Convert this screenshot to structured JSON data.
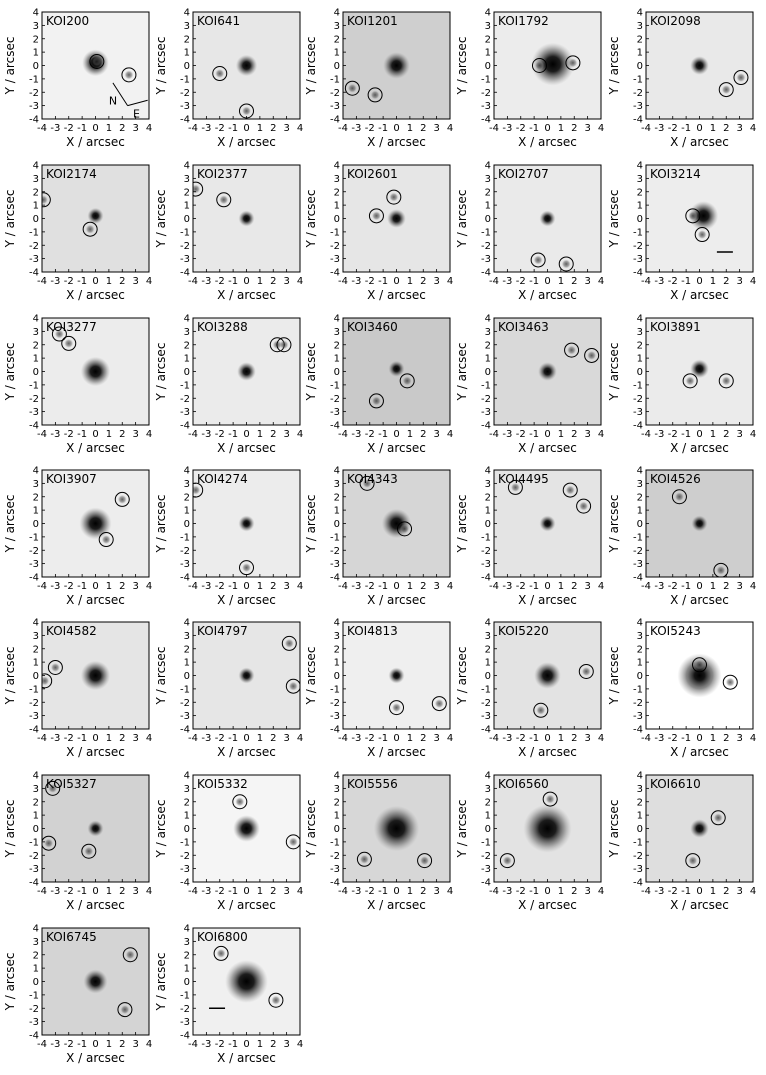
{
  "figure": {
    "xlabel": "X / arcsec",
    "ylabel": "Y / arcsec",
    "ticks": [
      "-4",
      "-3",
      "-2",
      "-1",
      "0",
      "1",
      "2",
      "3",
      "4"
    ],
    "compass": {
      "north": "N",
      "east": "E"
    }
  },
  "chart_data": {
    "type": "image-grid",
    "xlabel": "X / arcsec",
    "ylabel": "Y / arcsec",
    "xlim": [
      -4,
      4
    ],
    "ylim": [
      -4,
      4
    ],
    "panels": [
      {
        "label": "KOI200",
        "bg": "#f2f2f2",
        "primary": {
          "x": 0,
          "y": 0.2,
          "r": 1.0
        },
        "circles": [
          [
            0.1,
            0.3
          ],
          [
            2.5,
            -0.7
          ]
        ],
        "compass": true
      },
      {
        "label": "KOI641",
        "bg": "#e7e7e7",
        "primary": {
          "x": 0,
          "y": 0.0,
          "r": 0.8
        },
        "circles": [
          [
            -2.0,
            -0.6
          ],
          [
            0.0,
            -3.4
          ]
        ]
      },
      {
        "label": "KOI1201",
        "bg": "#cfcfcf",
        "primary": {
          "x": 0,
          "y": 0.0,
          "r": 1.0
        },
        "circles": [
          [
            -3.3,
            -1.7
          ],
          [
            -1.6,
            -2.2
          ]
        ]
      },
      {
        "label": "KOI1792",
        "bg": "#ececec",
        "primary": {
          "x": 0.4,
          "y": 0.1,
          "r": 1.6
        },
        "circles": [
          [
            -0.6,
            0.0
          ],
          [
            1.9,
            0.2
          ]
        ]
      },
      {
        "label": "KOI2098",
        "bg": "#e9e9e9",
        "primary": {
          "x": 0,
          "y": 0.0,
          "r": 0.7
        },
        "circles": [
          [
            2.0,
            -1.8
          ],
          [
            3.1,
            -0.9
          ]
        ]
      },
      {
        "label": "KOI2174",
        "bg": "#e0e0e0",
        "primary": {
          "x": 0,
          "y": 0.2,
          "r": 0.6
        },
        "circles": [
          [
            -3.9,
            1.4
          ],
          [
            -0.4,
            -0.8
          ]
        ]
      },
      {
        "label": "KOI2377",
        "bg": "#e8e8e8",
        "primary": {
          "x": 0,
          "y": 0.0,
          "r": 0.6
        },
        "circles": [
          [
            -3.8,
            2.2
          ],
          [
            -1.7,
            1.4
          ]
        ]
      },
      {
        "label": "KOI2601",
        "bg": "#e6e6e6",
        "primary": {
          "x": 0,
          "y": 0.0,
          "r": 0.7
        },
        "circles": [
          [
            -0.2,
            1.6
          ],
          [
            -1.5,
            0.2
          ]
        ]
      },
      {
        "label": "KOI2707",
        "bg": "#eaeaea",
        "primary": {
          "x": 0,
          "y": 0.0,
          "r": 0.6
        },
        "circles": [
          [
            -0.7,
            -3.1
          ],
          [
            1.4,
            -3.4
          ]
        ]
      },
      {
        "label": "KOI3214",
        "bg": "#ededed",
        "primary": {
          "x": 0.3,
          "y": 0.2,
          "r": 1.1
        },
        "circles": [
          [
            -0.5,
            0.2
          ],
          [
            0.2,
            -1.2
          ]
        ],
        "arrow": true
      },
      {
        "label": "KOI3277",
        "bg": "#ececec",
        "primary": {
          "x": 0,
          "y": 0.0,
          "r": 1.1
        },
        "circles": [
          [
            -2.7,
            2.8
          ],
          [
            -2.0,
            2.1
          ]
        ]
      },
      {
        "label": "KOI3288",
        "bg": "#ebebeb",
        "primary": {
          "x": 0,
          "y": 0.0,
          "r": 0.7
        },
        "circles": [
          [
            2.3,
            2.0
          ],
          [
            2.8,
            2.0
          ]
        ]
      },
      {
        "label": "KOI3460",
        "bg": "#c9c9c9",
        "primary": {
          "x": 0,
          "y": 0.2,
          "r": 0.6
        },
        "circles": [
          [
            0.8,
            -0.7
          ],
          [
            -1.5,
            -2.2
          ]
        ]
      },
      {
        "label": "KOI3463",
        "bg": "#d9d9d9",
        "primary": {
          "x": 0,
          "y": 0.0,
          "r": 0.7
        },
        "circles": [
          [
            1.8,
            1.6
          ],
          [
            3.3,
            1.2
          ]
        ]
      },
      {
        "label": "KOI3891",
        "bg": "#ebebeb",
        "primary": {
          "x": 0,
          "y": 0.2,
          "r": 0.7
        },
        "circles": [
          [
            -0.7,
            -0.7
          ],
          [
            2.0,
            -0.7
          ]
        ]
      },
      {
        "label": "KOI3907",
        "bg": "#ededed",
        "primary": {
          "x": 0,
          "y": 0.0,
          "r": 1.2
        },
        "circles": [
          [
            2.0,
            1.8
          ],
          [
            0.8,
            -1.2
          ]
        ]
      },
      {
        "label": "KOI4274",
        "bg": "#ececec",
        "primary": {
          "x": 0,
          "y": 0.0,
          "r": 0.6
        },
        "circles": [
          [
            -3.8,
            2.5
          ],
          [
            0.0,
            -3.3
          ]
        ]
      },
      {
        "label": "KOI4343",
        "bg": "#d6d6d6",
        "primary": {
          "x": 0,
          "y": 0.0,
          "r": 1.1
        },
        "circles": [
          [
            -2.2,
            3.0
          ],
          [
            0.6,
            -0.4
          ]
        ]
      },
      {
        "label": "KOI4495",
        "bg": "#e4e4e4",
        "primary": {
          "x": 0,
          "y": 0.0,
          "r": 0.6
        },
        "circles": [
          [
            -2.4,
            2.7
          ],
          [
            1.7,
            2.5
          ],
          [
            2.7,
            1.3
          ]
        ]
      },
      {
        "label": "KOI4526",
        "bg": "#cecece",
        "primary": {
          "x": 0,
          "y": 0.0,
          "r": 0.6
        },
        "circles": [
          [
            -1.5,
            2.0
          ],
          [
            1.6,
            -3.5
          ]
        ]
      },
      {
        "label": "KOI4582",
        "bg": "#e5e5e5",
        "primary": {
          "x": 0,
          "y": 0.0,
          "r": 1.1
        },
        "circles": [
          [
            -3.0,
            0.6
          ],
          [
            -3.8,
            -0.4
          ]
        ]
      },
      {
        "label": "KOI4797",
        "bg": "#e6e6e6",
        "primary": {
          "x": 0,
          "y": 0.0,
          "r": 0.6
        },
        "circles": [
          [
            3.2,
            2.4
          ],
          [
            3.5,
            -0.8
          ]
        ]
      },
      {
        "label": "KOI4813",
        "bg": "#efefef",
        "primary": {
          "x": 0,
          "y": 0.0,
          "r": 0.6
        },
        "circles": [
          [
            0.0,
            -2.4
          ],
          [
            3.2,
            -2.1
          ]
        ]
      },
      {
        "label": "KOI5220",
        "bg": "#e3e3e3",
        "primary": {
          "x": 0,
          "y": 0.0,
          "r": 1.0
        },
        "circles": [
          [
            2.9,
            0.3
          ],
          [
            -0.5,
            -2.6
          ]
        ]
      },
      {
        "label": "KOI5243",
        "bg": "#ffffff",
        "primary": {
          "x": 0,
          "y": 0.0,
          "r": 1.1
        },
        "circles": [
          [
            0.0,
            0.8
          ],
          [
            2.3,
            -0.5
          ]
        ],
        "halo": true
      },
      {
        "label": "KOI5327",
        "bg": "#d2d2d2",
        "primary": {
          "x": 0,
          "y": 0.0,
          "r": 0.6
        },
        "circles": [
          [
            -3.2,
            3.0
          ],
          [
            -3.5,
            -1.1
          ],
          [
            -0.5,
            -1.7
          ]
        ]
      },
      {
        "label": "KOI5332",
        "bg": "#f5f5f5",
        "primary": {
          "x": 0,
          "y": 0.0,
          "r": 1.0
        },
        "circles": [
          [
            -0.5,
            2.0
          ],
          [
            3.5,
            -1.0
          ]
        ]
      },
      {
        "label": "KOI5556",
        "bg": "#d7d7d7",
        "primary": {
          "x": 0,
          "y": 0.0,
          "r": 1.7
        },
        "circles": [
          [
            -2.4,
            -2.3
          ],
          [
            2.1,
            -2.4
          ]
        ]
      },
      {
        "label": "KOI6560",
        "bg": "#e3e3e3",
        "primary": {
          "x": 0,
          "y": 0.0,
          "r": 1.8
        },
        "circles": [
          [
            0.2,
            2.2
          ],
          [
            -3.0,
            -2.4
          ]
        ]
      },
      {
        "label": "KOI6610",
        "bg": "#dedede",
        "primary": {
          "x": 0,
          "y": 0.0,
          "r": 0.7
        },
        "circles": [
          [
            1.4,
            0.8
          ],
          [
            -0.5,
            -2.4
          ]
        ]
      },
      {
        "label": "KOI6745",
        "bg": "#d4d4d4",
        "primary": {
          "x": 0,
          "y": 0.0,
          "r": 0.9
        },
        "circles": [
          [
            2.6,
            2.0
          ],
          [
            2.2,
            -2.1
          ]
        ]
      },
      {
        "label": "KOI6800",
        "bg": "#f0f0f0",
        "primary": {
          "x": 0,
          "y": 0.0,
          "r": 1.6
        },
        "circles": [
          [
            -1.9,
            2.1
          ],
          [
            2.2,
            -1.4
          ]
        ],
        "arrow": true
      }
    ]
  }
}
